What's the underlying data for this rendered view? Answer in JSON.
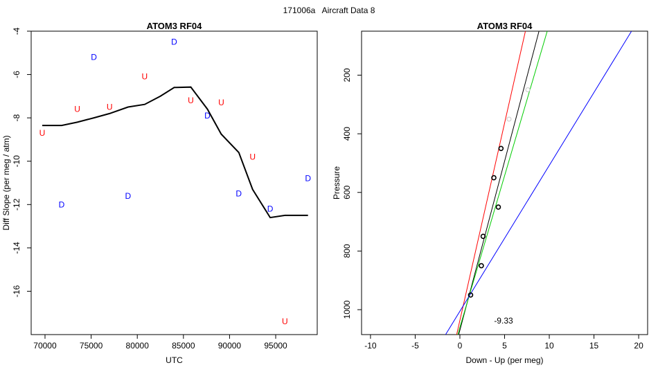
{
  "page_title": "171006a   Aircraft Data 8",
  "chart_data": [
    {
      "type": "scatter",
      "title": "ATOM3 RF04",
      "xlabel": "UTC",
      "ylabel": "Diff Slope (per meg / atm)",
      "xlim": [
        68500,
        99500
      ],
      "ylim": [
        -18,
        -4
      ],
      "xticks": [
        70000,
        75000,
        80000,
        85000,
        90000,
        95000
      ],
      "xtick_labels": [
        "70000",
        "75000",
        "80000",
        "85000",
        "90000",
        "95000"
      ],
      "yticks": [
        -4,
        -6,
        -8,
        -10,
        -12,
        -14,
        -16
      ],
      "ytick_labels": [
        "-4",
        "-6",
        "-8",
        "-10",
        "-12",
        "-14",
        "-16"
      ],
      "grid": false,
      "series": [
        {
          "marker": "U",
          "color": "#ff0000",
          "points": [
            [
              69700,
              -8.7
            ],
            [
              73500,
              -7.6
            ],
            [
              77000,
              -7.5
            ],
            [
              80800,
              -6.1
            ],
            [
              85800,
              -7.2
            ],
            [
              89100,
              -7.3
            ],
            [
              92500,
              -9.8
            ],
            [
              96000,
              -17.4
            ]
          ]
        },
        {
          "marker": "D",
          "color": "#0000ff",
          "points": [
            [
              71800,
              -12.0
            ],
            [
              75300,
              -5.2
            ],
            [
              79000,
              -11.6
            ],
            [
              84000,
              -4.5
            ],
            [
              87600,
              -7.9
            ],
            [
              91000,
              -11.5
            ],
            [
              94400,
              -12.2
            ],
            [
              98500,
              -10.8
            ]
          ]
        },
        {
          "style": "line",
          "color": "#000000",
          "points": [
            [
              69700,
              -8.35
            ],
            [
              71800,
              -8.35
            ],
            [
              73500,
              -8.2
            ],
            [
              75300,
              -8.0
            ],
            [
              77000,
              -7.8
            ],
            [
              79000,
              -7.5
            ],
            [
              80800,
              -7.38
            ],
            [
              82500,
              -7.0
            ],
            [
              84000,
              -6.6
            ],
            [
              85800,
              -6.58
            ],
            [
              87600,
              -7.6
            ],
            [
              89100,
              -8.75
            ],
            [
              91000,
              -9.6
            ],
            [
              92500,
              -11.3
            ],
            [
              94400,
              -12.6
            ],
            [
              96000,
              -12.5
            ],
            [
              98500,
              -12.5
            ]
          ]
        }
      ]
    },
    {
      "type": "scatter",
      "title": "ATOM3 RF04",
      "xlabel": "Down - Up (per meg)",
      "ylabel": "Pressure",
      "xlim": [
        -11,
        21
      ],
      "ylim": [
        1085,
        50
      ],
      "xticks": [
        -10,
        -5,
        0,
        5,
        10,
        15,
        20
      ],
      "xtick_labels": [
        "-10",
        "-5",
        "0",
        "5",
        "10",
        "15",
        "20"
      ],
      "yticks": [
        200,
        400,
        600,
        800,
        1000
      ],
      "ytick_labels": [
        "200",
        "400",
        "600",
        "800",
        "1000"
      ],
      "grid": false,
      "annotation": "-9.33",
      "points": [
        {
          "x": 1.2,
          "y": 950,
          "color": "#000000"
        },
        {
          "x": 2.4,
          "y": 850,
          "color": "#000000"
        },
        {
          "x": 2.6,
          "y": 750,
          "color": "#000000"
        },
        {
          "x": 4.3,
          "y": 650,
          "color": "#000000"
        },
        {
          "x": 3.8,
          "y": 550,
          "color": "#000000"
        },
        {
          "x": 4.6,
          "y": 450,
          "color": "#000000"
        },
        {
          "x": 5.5,
          "y": 350,
          "color": "#c8c8c8"
        },
        {
          "x": 7.6,
          "y": 250,
          "color": "#c8c8c8"
        }
      ],
      "lines": [
        {
          "color": "#ff0000",
          "points": [
            [
              -0.36,
              1085
            ],
            [
              7.33,
              50
            ]
          ]
        },
        {
          "color": "#000000",
          "points": [
            [
              -0.13,
              1085
            ],
            [
              8.85,
              50
            ]
          ]
        },
        {
          "color": "#00cc00",
          "points": [
            [
              -0.24,
              1085
            ],
            [
              9.77,
              50
            ]
          ]
        },
        {
          "color": "#0000ff",
          "points": [
            [
              -1.6,
              1085
            ],
            [
              19.2,
              50
            ]
          ]
        }
      ]
    }
  ]
}
